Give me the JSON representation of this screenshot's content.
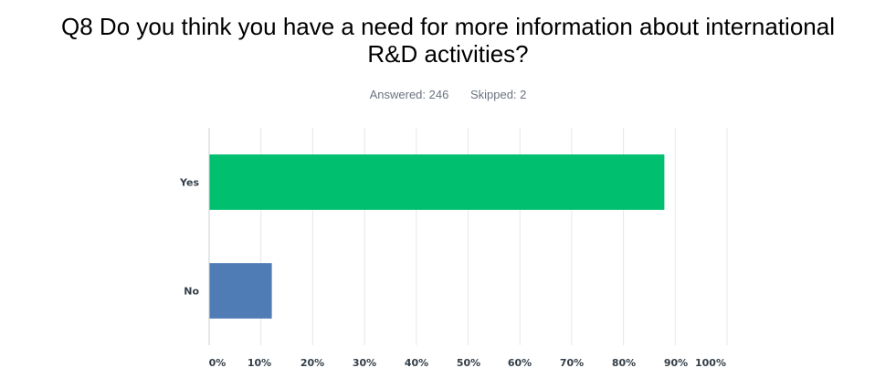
{
  "title_line1": "Q8 Do you think you have a need for more information about international",
  "title_line2": "R&D activities?",
  "stats": {
    "answered": "Answered: 246",
    "skipped": "Skipped: 2"
  },
  "chart_data": {
    "type": "bar",
    "orientation": "horizontal",
    "categories": [
      "Yes",
      "No"
    ],
    "values": [
      87.9,
      12.1
    ],
    "xlim": [
      0,
      100
    ],
    "xticks": [
      "0%",
      "10%",
      "20%",
      "30%",
      "40%",
      "50%",
      "60%",
      "70%",
      "80%",
      "90%",
      "100%"
    ],
    "colors": [
      "#00bf6f",
      "#507cb6"
    ],
    "grid": true
  }
}
